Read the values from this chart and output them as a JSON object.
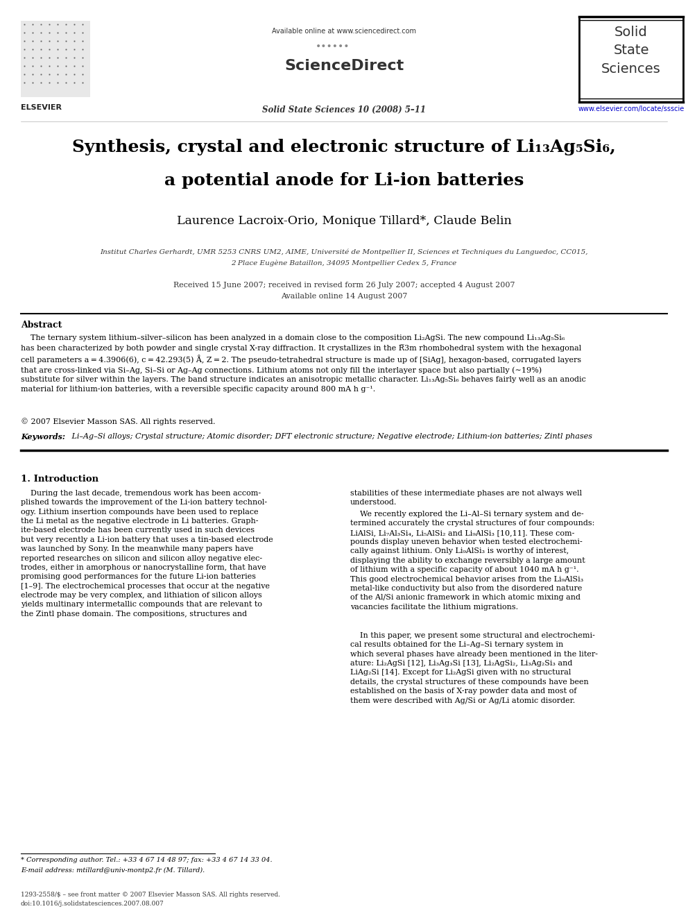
{
  "bg_color": "#ffffff",
  "page_width": 9.92,
  "page_height": 13.23,
  "dpi": 100,
  "header_available_online": "Available online at www.sciencedirect.com",
  "header_sciencedirect": "ScienceDirect",
  "header_journal": "Solid State Sciences 10 (2008) 5–11",
  "header_url": "www.elsevier.com/locate/ssscie",
  "header_elsevier": "ELSEVIER",
  "title_line1": "Synthesis, crystal and electronic structure of Li₁₃Ag₅Si₆,",
  "title_line2": "a potential anode for Li-ion batteries",
  "authors": "Laurence Lacroix-Orio, Monique Tillard*, Claude Belin",
  "affiliation1": "Institut Charles Gerhardt, UMR 5253 CNRS UM2, AIME, Université de Montpellier II, Sciences et Techniques du Languedoc, CC015,",
  "affiliation2": "2 Place Eugène Bataillon, 34095 Montpellier Cedex 5, France",
  "received": "Received 15 June 2007; received in revised form 26 July 2007; accepted 4 August 2007",
  "available": "Available online 14 August 2007",
  "abstract_title": "Abstract",
  "abstract_body": "    The ternary system lithium–silver–silicon has been analyzed in a domain close to the composition Li₂AgSi. The new compound Li₁₃Ag₅Si₆\nhas been characterized by both powder and single crystal X-ray diffraction. It crystallizes in the R̅3m rhombohedral system with the hexagonal\ncell parameters a = 4.3906(6), c = 42.293(5) Å, Z = 2. The pseudo-tetrahedral structure is made up of [SiAg], hexagon-based, corrugated layers\nthat are cross-linked via Si–Ag, Si–Si or Ag–Ag connections. Lithium atoms not only fill the interlayer space but also partially (∼19%)\nsubstitute for silver within the layers. The band structure indicates an anisotropic metallic character. Li₁₃Ag₅Si₆ behaves fairly well as an anodic\nmaterial for lithium-ion batteries, with a reversible specific capacity around 800 mA h g⁻¹.",
  "copyright": "© 2007 Elsevier Masson SAS. All rights reserved.",
  "keywords_label": "Keywords:",
  "keywords_text": " Li–Ag–Si alloys; Crystal structure; Atomic disorder; DFT electronic structure; Negative electrode; Lithium-ion batteries; Zintl phases",
  "section1_title": "1. Introduction",
  "col1_text": "    During the last decade, tremendous work has been accom-\nplished towards the improvement of the Li-ion battery technol-\nogy. Lithium insertion compounds have been used to replace\nthe Li metal as the negative electrode in Li batteries. Graph-\nite-based electrode has been currently used in such devices\nbut very recently a Li-ion battery that uses a tin-based electrode\nwas launched by Sony. In the meanwhile many papers have\nreported researches on silicon and silicon alloy negative elec-\ntrodes, either in amorphous or nanocrystalline form, that have\npromising good performances for the future Li-ion batteries\n[1–9]. The electrochemical processes that occur at the negative\nelectrode may be very complex, and lithiation of silicon alloys\nyields multinary intermetallic compounds that are relevant to\nthe Zintl phase domain. The compositions, structures and",
  "col2_text_1": "stabilities of these intermediate phases are not always well\nunderstood.",
  "col2_text_2": "    We recently explored the Li–Al–Si ternary system and de-\ntermined accurately the crystal structures of four compounds:\nLiAlSi, Li₇Al₃Si₄, Li₅AlSi₂ and Li₉AlSi₃ [10,11]. These com-\npounds display uneven behavior when tested electrochemi-\ncally against lithium. Only Li₉AlSi₃ is worthy of interest,\ndisplaying the ability to exchange reversibly a large amount\nof lithium with a specific capacity of about 1040 mA h g⁻¹.\nThis good electrochemical behavior arises from the Li₉AlSi₃\nmetal-like conductivity but also from the disordered nature\nof the Al/Si anionic framework in which atomic mixing and\nvacancies facilitate the lithium migrations.",
  "col2_text_3": "    In this paper, we present some structural and electrochemi-\ncal results obtained for the Li–Ag–Si ternary system in\nwhich several phases have already been mentioned in the liter-\nature: Li₂AgSi [12], Li₃Ag₃Si [13], Li₂AgSi₂, Li₃Ag₂Si₃ and\nLiAg₂Si [14]. Except for Li₂AgSi given with no structural\ndetails, the crystal structures of these compounds have been\nestablished on the basis of X-ray powder data and most of\nthem were described with Ag/Si or Ag/Li atomic disorder.",
  "footnote_line": "* Corresponding author. Tel.: +33 4 67 14 48 97; fax: +33 4 67 14 33 04.",
  "footnote_email": "E-mail address: mtillard@univ-montp2.fr (M. Tillard).",
  "bottom_issn": "1293-2558/$ – see front matter © 2007 Elsevier Masson SAS. All rights reserved.",
  "bottom_doi": "doi:10.1016/j.solidstatesciences.2007.08.007"
}
